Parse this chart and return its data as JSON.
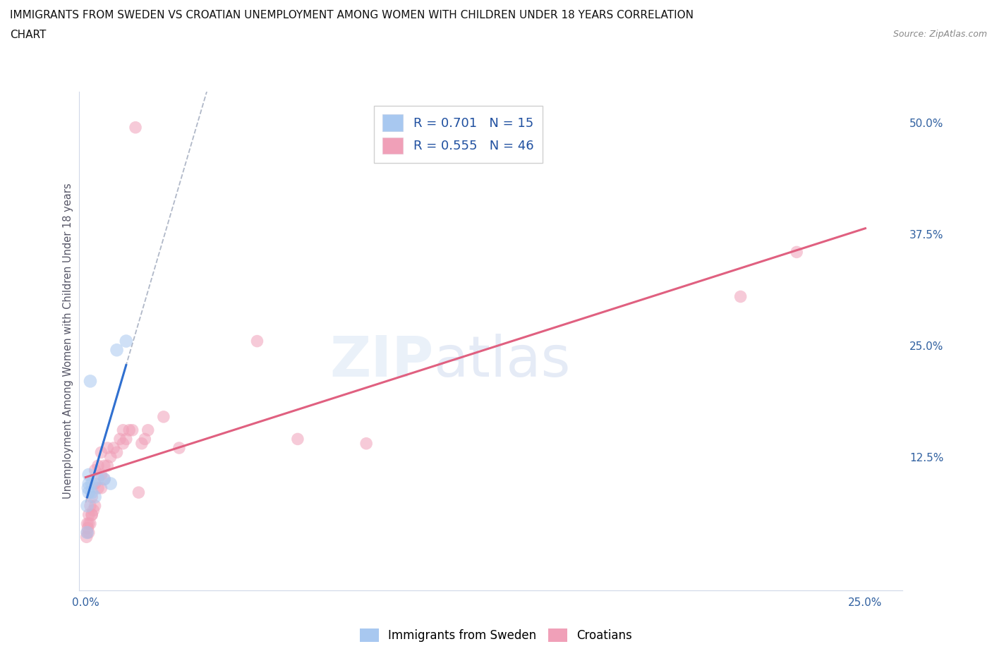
{
  "title_line1": "IMMIGRANTS FROM SWEDEN VS CROATIAN UNEMPLOYMENT AMONG WOMEN WITH CHILDREN UNDER 18 YEARS CORRELATION",
  "title_line2": "CHART",
  "source": "Source: ZipAtlas.com",
  "ylabel": "Unemployment Among Women with Children Under 18 years",
  "legend1_label": "Immigrants from Sweden",
  "legend2_label": "Croatians",
  "R_sweden": 0.701,
  "N_sweden": 15,
  "R_croatian": 0.555,
  "N_croatian": 46,
  "sweden_color": "#a8c8f0",
  "swedish_line_color": "#3070d0",
  "croatian_color": "#f0a0b8",
  "croatian_line_color": "#e06080",
  "dashed_line_color": "#b0b8c8",
  "xlim": [
    -0.002,
    0.262
  ],
  "ylim": [
    -0.025,
    0.535
  ],
  "sweden_x": [
    0.0005,
    0.0005,
    0.0008,
    0.001,
    0.001,
    0.001,
    0.0015,
    0.002,
    0.002,
    0.003,
    0.004,
    0.006,
    0.008,
    0.01,
    0.013
  ],
  "sweden_y": [
    0.04,
    0.07,
    0.09,
    0.085,
    0.095,
    0.105,
    0.21,
    0.085,
    0.095,
    0.08,
    0.1,
    0.1,
    0.095,
    0.245,
    0.255
  ],
  "croatian_x": [
    0.0003,
    0.0005,
    0.0005,
    0.0007,
    0.001,
    0.001,
    0.001,
    0.0015,
    0.0015,
    0.002,
    0.002,
    0.002,
    0.0025,
    0.003,
    0.003,
    0.003,
    0.004,
    0.004,
    0.005,
    0.005,
    0.005,
    0.006,
    0.006,
    0.007,
    0.007,
    0.008,
    0.009,
    0.01,
    0.011,
    0.012,
    0.012,
    0.013,
    0.014,
    0.015,
    0.016,
    0.017,
    0.018,
    0.019,
    0.02,
    0.025,
    0.03,
    0.055,
    0.068,
    0.09,
    0.21,
    0.228
  ],
  "croatian_y": [
    0.035,
    0.04,
    0.05,
    0.045,
    0.04,
    0.05,
    0.06,
    0.05,
    0.07,
    0.06,
    0.08,
    0.06,
    0.065,
    0.07,
    0.095,
    0.11,
    0.09,
    0.115,
    0.09,
    0.105,
    0.13,
    0.1,
    0.115,
    0.115,
    0.135,
    0.125,
    0.135,
    0.13,
    0.145,
    0.14,
    0.155,
    0.145,
    0.155,
    0.155,
    0.495,
    0.085,
    0.14,
    0.145,
    0.155,
    0.17,
    0.135,
    0.255,
    0.145,
    0.14,
    0.305,
    0.355
  ],
  "background_color": "#ffffff",
  "grid_color": "#c8d4e4",
  "marker_size_sweden": 180,
  "marker_size_croatian": 160,
  "marker_alpha": 0.55,
  "x_tick_positions": [
    0.0,
    0.05,
    0.1,
    0.15,
    0.2,
    0.25
  ],
  "x_tick_labels": [
    "0.0%",
    "",
    "",
    "",
    "",
    "25.0%"
  ],
  "y_tick_positions": [
    0.0,
    0.125,
    0.25,
    0.375,
    0.5
  ],
  "y_tick_labels": [
    "",
    "12.5%",
    "25.0%",
    "37.5%",
    "50.0%"
  ]
}
